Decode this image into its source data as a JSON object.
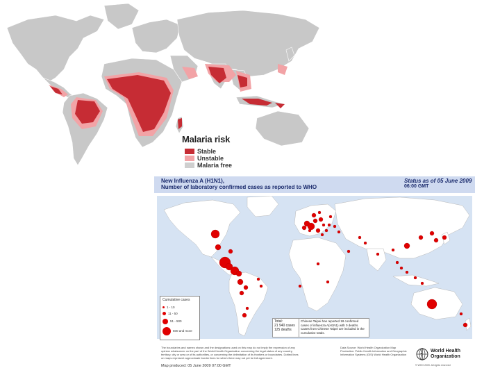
{
  "malaria": {
    "legend_title": "Malaria risk",
    "legend": [
      {
        "label": "Stable",
        "color": "#c62c34"
      },
      {
        "label": "Unstable",
        "color": "#f2a3a6"
      },
      {
        "label": "Malaria free",
        "color": "#cfcfcf"
      }
    ],
    "land_color": "#c8c8c8"
  },
  "flu": {
    "title_line1": "New Influenza A (H1N1),",
    "title_line2": "Number of laboratory confirmed cases as reported to WHO",
    "status_line1": "Status as of 05 June 2009",
    "status_line2": "06:00 GMT",
    "legend_title": "Cumulative cases",
    "legend": [
      "1 - 10",
      "11 - 50",
      "51 - 500",
      "500 and more"
    ],
    "total_label": "Total:",
    "total_cases": "21 940 cases",
    "total_deaths": "125 deaths",
    "taipei_note": "Chinese Taipei has reported 18 confirmed cases of influenza A(H1N1) with 0 deaths. Cases from Chinese Taipei are included in the cumulative totals.",
    "disclaimer": "The boundaries and names shown and the designations used on this map do not imply the expression of any opinion whatsoever on the part of the World Health Organization concerning the legal status of any country, territory, city or area or of its authorities, or concerning the delimitation of its frontiers or boundaries. Dotted lines on maps represent approximate border lines for which there may not yet be full agreement.",
    "source": "Data Source: World Health Organization Map Production: Public Health Information and Geographic Information Systems (GIS) World Health Organization",
    "map_produced": "Map produced: 05 June 2009 07:00 GMT",
    "org_line1": "World Health",
    "org_line2": "Organization",
    "copyright": "© WHO 2009. All rights reserved",
    "marker_color": "#e00000",
    "ocean_color": "#d6e3f3"
  }
}
